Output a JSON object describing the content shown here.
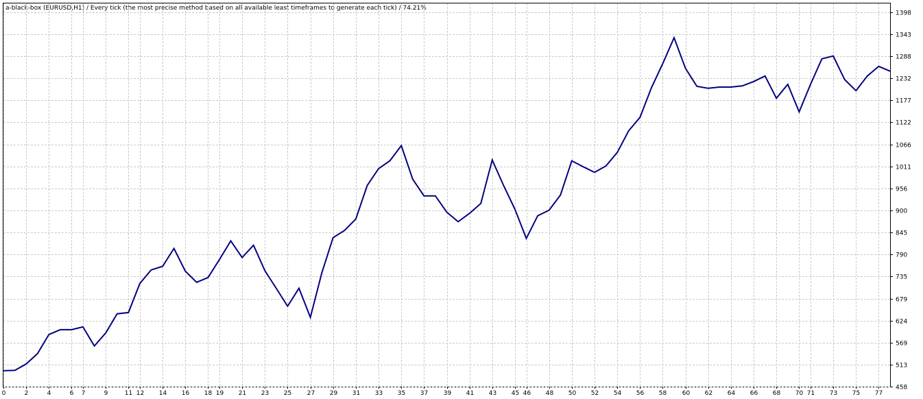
{
  "chart_data": {
    "type": "line",
    "title": "a-black-box (EURUSD,H1) / Every tick (the most precise method based on all available least timeframes to generate each tick) / 74.21%",
    "x": [
      0,
      1,
      2,
      3,
      4,
      5,
      6,
      7,
      8,
      9,
      10,
      11,
      12,
      13,
      14,
      15,
      16,
      17,
      18,
      19,
      20,
      21,
      22,
      23,
      24,
      25,
      26,
      27,
      28,
      29,
      30,
      31,
      32,
      33,
      34,
      35,
      36,
      37,
      38,
      39,
      40,
      41,
      42,
      43,
      44,
      45,
      46,
      47,
      48,
      49,
      50,
      51,
      52,
      53,
      54,
      55,
      56,
      57,
      58,
      59,
      60,
      61,
      62,
      63,
      64,
      65,
      66,
      67,
      68,
      69,
      70,
      71,
      72,
      73,
      74,
      75,
      76,
      77,
      78
    ],
    "values": [
      498,
      499,
      515,
      541,
      589,
      601,
      601,
      608,
      560,
      593,
      641,
      644,
      717,
      751,
      760,
      805,
      748,
      720,
      732,
      777,
      824,
      782,
      813,
      749,
      705,
      660,
      705,
      632,
      743,
      832,
      850,
      879,
      963,
      1005,
      1025,
      1063,
      979,
      937,
      937,
      896,
      872,
      893,
      918,
      1027,
      963,
      903,
      830,
      887,
      901,
      939,
      1025,
      1010,
      996,
      1012,
      1046,
      1100,
      1134,
      1208,
      1269,
      1334,
      1257,
      1212,
      1207,
      1210,
      1210,
      1213,
      1224,
      1238,
      1182,
      1217,
      1148,
      1217,
      1281,
      1288,
      1229,
      1201,
      1238,
      1262,
      1250
    ],
    "color": "#000080",
    "xlim": [
      0,
      78
    ],
    "xticks": [
      0,
      2,
      4,
      6,
      7,
      9,
      11,
      12,
      14,
      16,
      18,
      19,
      21,
      23,
      25,
      27,
      29,
      31,
      33,
      35,
      37,
      39,
      41,
      43,
      45,
      46,
      48,
      50,
      52,
      54,
      56,
      58,
      60,
      62,
      64,
      66,
      68,
      70,
      71,
      73,
      75,
      77
    ],
    "ylim": [
      458,
      1420
    ],
    "yticks": [
      458,
      513,
      569,
      624,
      679,
      735,
      790,
      845,
      900,
      956,
      1011,
      1066,
      1122,
      1177,
      1232,
      1288,
      1343,
      1398
    ],
    "grid": true
  }
}
